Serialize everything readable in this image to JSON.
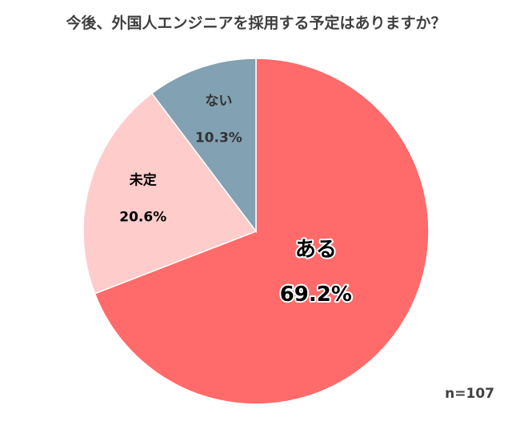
{
  "chart_data": {
    "type": "pie",
    "title": "今後、外国人エンジニアを採用する予定はありますか？",
    "slices": [
      {
        "label": "ある",
        "value": 69.2,
        "display": "69.2%",
        "color": "#FF6B6B",
        "text_color": "#000000",
        "text_stroke": "#ffffff"
      },
      {
        "label": "未定",
        "value": 20.6,
        "display": "20.6%",
        "color": "#FFCCCC",
        "text_color": "#000000",
        "text_stroke": ""
      },
      {
        "label": "ない",
        "value": 10.3,
        "display": "10.3%",
        "color": "#82A1B2",
        "text_color": "#333333",
        "text_stroke": ""
      }
    ],
    "start": "12 o'clock",
    "direction": "clockwise",
    "note": "n=107"
  }
}
